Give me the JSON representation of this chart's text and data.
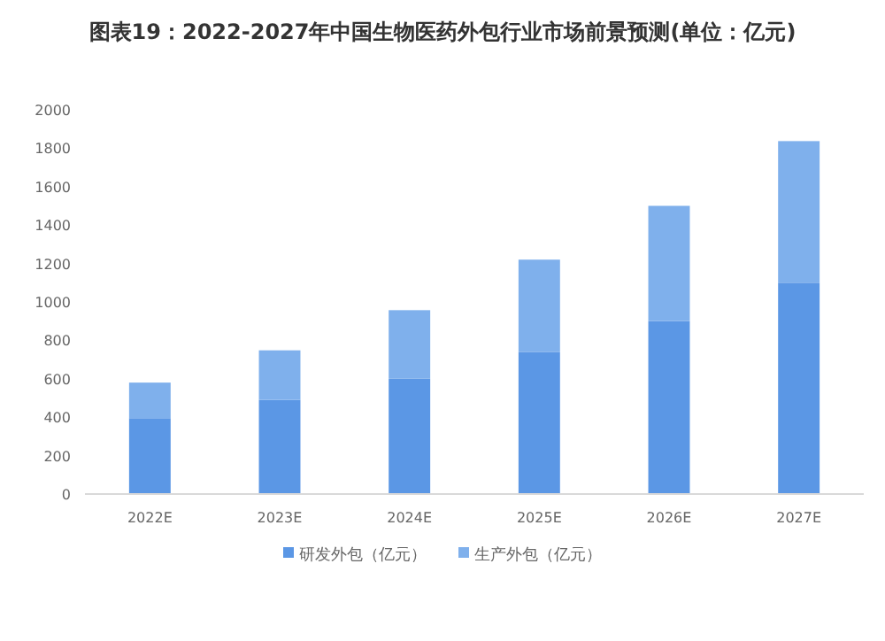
{
  "chart_data": {
    "type": "bar",
    "stacked": true,
    "title": "图表19：2022-2027年中国生物医药外包行业市场前景预测(单位：亿元)",
    "categories": [
      "2022E",
      "2023E",
      "2024E",
      "2025E",
      "2026E",
      "2027E"
    ],
    "series": [
      {
        "name": "研发外包（亿元）",
        "color": "#5b97e5",
        "values": [
          395,
          490,
          600,
          740,
          900,
          1100
        ]
      },
      {
        "name": "生产外包（亿元）",
        "color": "#7fb0ec",
        "values": [
          185,
          258,
          357,
          480,
          600,
          737
        ]
      }
    ],
    "ylim": [
      0,
      2000
    ],
    "yticks": [
      0,
      200,
      400,
      600,
      800,
      1000,
      1200,
      1400,
      1600,
      1800,
      2000
    ],
    "grid": false,
    "legend": "bottom"
  }
}
